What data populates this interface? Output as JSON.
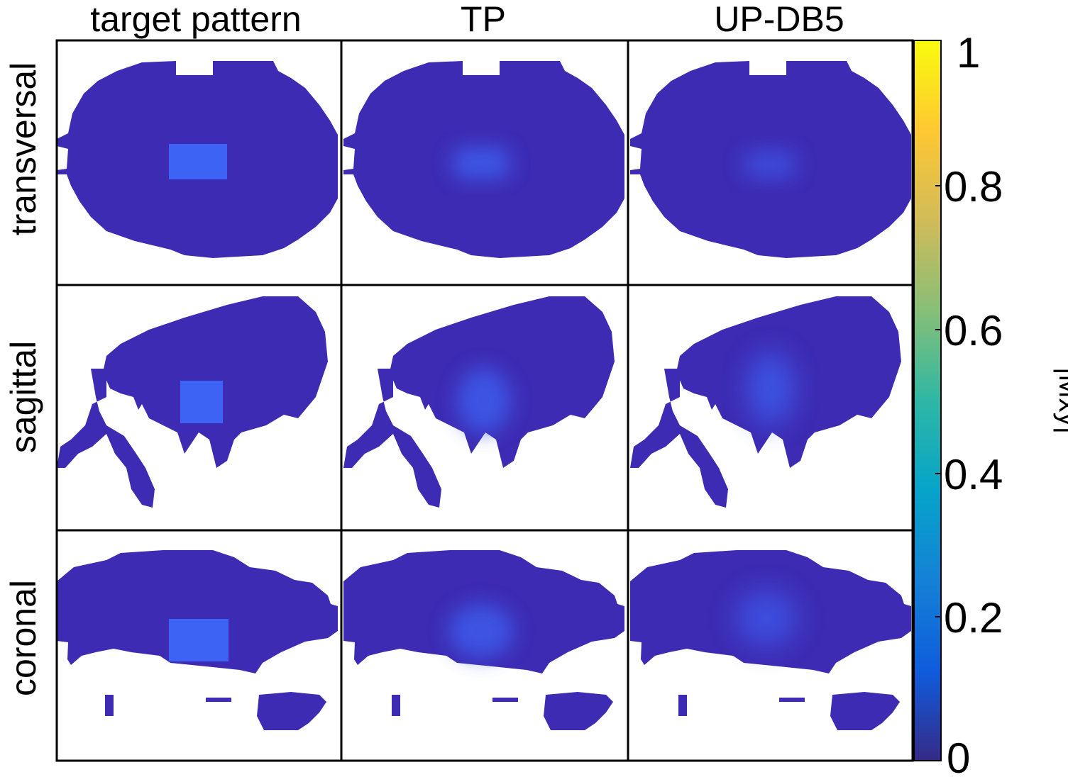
{
  "column_titles": [
    "target pattern",
    "TP",
    "UP-DB5"
  ],
  "row_titles": [
    "transversal",
    "sagittal",
    "coronal"
  ],
  "colorbar": {
    "label": "|Mxy|",
    "ticks": [
      "1",
      "0.8",
      "0.6",
      "0.4",
      "0.2",
      "0"
    ],
    "tick_values": [
      1,
      0.8,
      0.6,
      0.4,
      0.2,
      0
    ],
    "range": [
      0,
      1
    ],
    "colormap": "parula",
    "stops": [
      "#352a87",
      "#0f5cdd",
      "#1481d6",
      "#06a4ca",
      "#2eb7a4",
      "#87bf77",
      "#d1bb59",
      "#fec832",
      "#f9fb0e"
    ]
  },
  "colors": {
    "background_tissue": "#3d2bb3",
    "target_region": "#3d63f5",
    "empty": "#ffffff"
  },
  "panels": [
    {
      "row": "transversal",
      "column": "target pattern",
      "target_level": 0.22,
      "edge": "sharp"
    },
    {
      "row": "transversal",
      "column": "TP",
      "target_level": 0.14,
      "edge": "blurred"
    },
    {
      "row": "transversal",
      "column": "UP-DB5",
      "target_level": 0.1,
      "edge": "blurred"
    },
    {
      "row": "sagittal",
      "column": "target pattern",
      "target_level": 0.22,
      "edge": "sharp"
    },
    {
      "row": "sagittal",
      "column": "TP",
      "target_level": 0.14,
      "edge": "blurred"
    },
    {
      "row": "sagittal",
      "column": "UP-DB5",
      "target_level": 0.12,
      "edge": "blurred"
    },
    {
      "row": "coronal",
      "column": "target pattern",
      "target_level": 0.22,
      "edge": "sharp"
    },
    {
      "row": "coronal",
      "column": "TP",
      "target_level": 0.14,
      "edge": "blurred"
    },
    {
      "row": "coronal",
      "column": "UP-DB5",
      "target_level": 0.11,
      "edge": "blurred"
    }
  ]
}
